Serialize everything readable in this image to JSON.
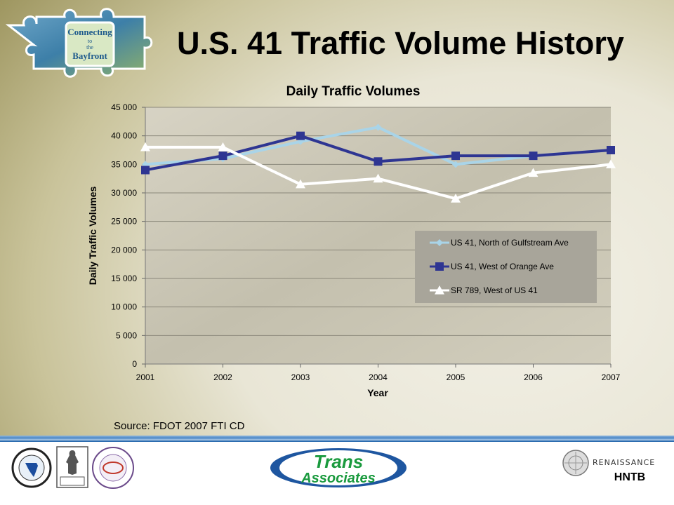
{
  "slide": {
    "title": "U.S. 41 Traffic Volume History",
    "source": "Source: FDOT 2007 FTI CD"
  },
  "logos": {
    "puzzle_line1": "Connecting",
    "puzzle_line2": "to",
    "puzzle_line3": "the",
    "puzzle_line4": "Bayfront",
    "trans_line1": "Trans",
    "trans_line2": "Associates",
    "renaissance": "RENAISSANCE",
    "hntb": "HNTB"
  },
  "colors": {
    "series1": "#a9d4e8",
    "series2": "#2e3592",
    "series3": "#ffffff",
    "trans_blue": "#1e56a0",
    "trans_green": "#1a9a3e"
  },
  "chart_data": {
    "type": "line",
    "title": "Daily Traffic Volumes",
    "xlabel": "Year",
    "ylabel": "Daily Traffic Volumes",
    "x": [
      "2001",
      "2002",
      "2003",
      "2004",
      "2005",
      "2006",
      "2007"
    ],
    "ylim": [
      0,
      45000
    ],
    "yticks": [
      "0",
      "5 000",
      "10 000",
      "15 000",
      "20 000",
      "25 000",
      "30 000",
      "35 000",
      "40 000",
      "45 000"
    ],
    "ytick_values": [
      0,
      5000,
      10000,
      15000,
      20000,
      25000,
      30000,
      35000,
      40000,
      45000
    ],
    "grid": true,
    "legend_position": "right-middle",
    "series": [
      {
        "name": "US 41, North of Gulfstream Ave",
        "marker": "diamond",
        "values": [
          35000,
          36000,
          39000,
          41500,
          35000,
          36500,
          37500
        ]
      },
      {
        "name": "US 41, West of Orange Ave",
        "marker": "square",
        "values": [
          34000,
          36500,
          40000,
          35500,
          36500,
          36500,
          37500
        ]
      },
      {
        "name": "SR 789, West of US 41",
        "marker": "triangle",
        "values": [
          38000,
          38000,
          31500,
          32500,
          29000,
          33500,
          35000
        ]
      }
    ]
  }
}
